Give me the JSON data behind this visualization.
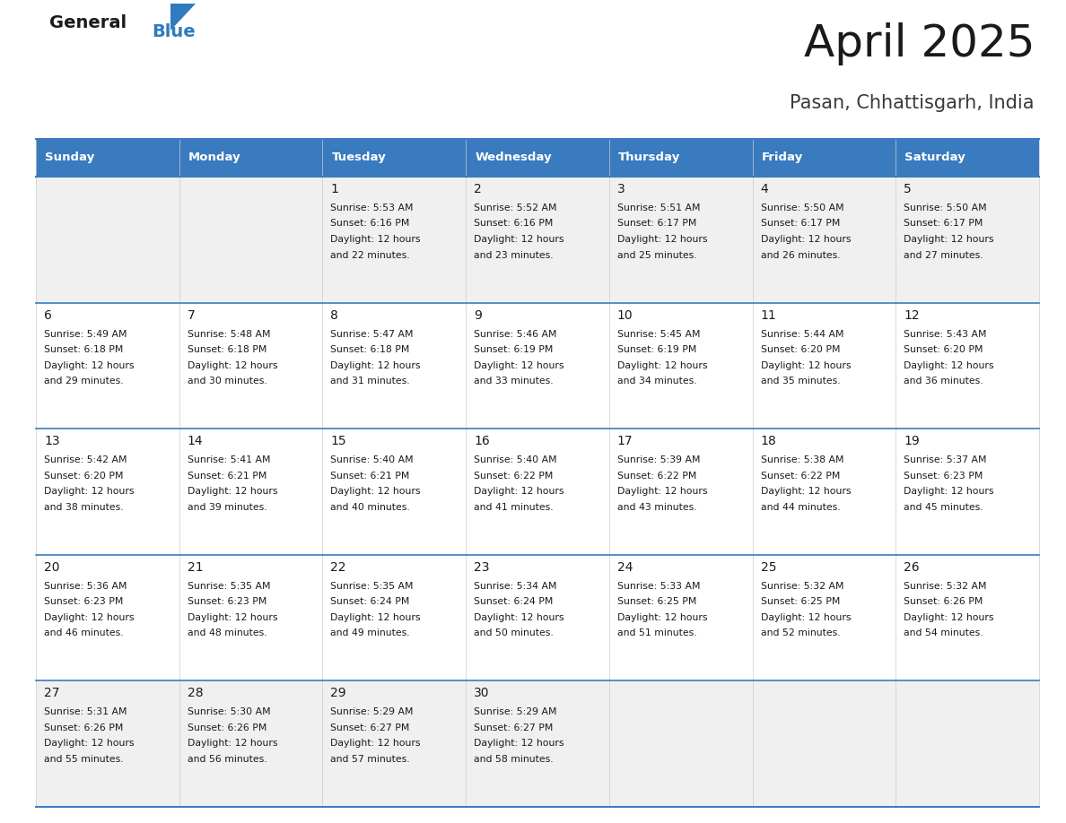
{
  "title": "April 2025",
  "subtitle": "Pasan, Chhattisgarh, India",
  "header_color": "#3a7bbf",
  "header_text_color": "#ffffff",
  "row_divider_color": "#3a7bbf",
  "cell_bg_light": "#f0f0f0",
  "cell_bg_white": "#ffffff",
  "text_color": "#1a1a1a",
  "day_names": [
    "Sunday",
    "Monday",
    "Tuesday",
    "Wednesday",
    "Thursday",
    "Friday",
    "Saturday"
  ],
  "days": [
    {
      "day": 1,
      "col": 2,
      "row": 0,
      "sunrise": "5:53 AM",
      "sunset": "6:16 PM",
      "daylight_hours": 12,
      "daylight_minutes": 22
    },
    {
      "day": 2,
      "col": 3,
      "row": 0,
      "sunrise": "5:52 AM",
      "sunset": "6:16 PM",
      "daylight_hours": 12,
      "daylight_minutes": 23
    },
    {
      "day": 3,
      "col": 4,
      "row": 0,
      "sunrise": "5:51 AM",
      "sunset": "6:17 PM",
      "daylight_hours": 12,
      "daylight_minutes": 25
    },
    {
      "day": 4,
      "col": 5,
      "row": 0,
      "sunrise": "5:50 AM",
      "sunset": "6:17 PM",
      "daylight_hours": 12,
      "daylight_minutes": 26
    },
    {
      "day": 5,
      "col": 6,
      "row": 0,
      "sunrise": "5:50 AM",
      "sunset": "6:17 PM",
      "daylight_hours": 12,
      "daylight_minutes": 27
    },
    {
      "day": 6,
      "col": 0,
      "row": 1,
      "sunrise": "5:49 AM",
      "sunset": "6:18 PM",
      "daylight_hours": 12,
      "daylight_minutes": 29
    },
    {
      "day": 7,
      "col": 1,
      "row": 1,
      "sunrise": "5:48 AM",
      "sunset": "6:18 PM",
      "daylight_hours": 12,
      "daylight_minutes": 30
    },
    {
      "day": 8,
      "col": 2,
      "row": 1,
      "sunrise": "5:47 AM",
      "sunset": "6:18 PM",
      "daylight_hours": 12,
      "daylight_minutes": 31
    },
    {
      "day": 9,
      "col": 3,
      "row": 1,
      "sunrise": "5:46 AM",
      "sunset": "6:19 PM",
      "daylight_hours": 12,
      "daylight_minutes": 33
    },
    {
      "day": 10,
      "col": 4,
      "row": 1,
      "sunrise": "5:45 AM",
      "sunset": "6:19 PM",
      "daylight_hours": 12,
      "daylight_minutes": 34
    },
    {
      "day": 11,
      "col": 5,
      "row": 1,
      "sunrise": "5:44 AM",
      "sunset": "6:20 PM",
      "daylight_hours": 12,
      "daylight_minutes": 35
    },
    {
      "day": 12,
      "col": 6,
      "row": 1,
      "sunrise": "5:43 AM",
      "sunset": "6:20 PM",
      "daylight_hours": 12,
      "daylight_minutes": 36
    },
    {
      "day": 13,
      "col": 0,
      "row": 2,
      "sunrise": "5:42 AM",
      "sunset": "6:20 PM",
      "daylight_hours": 12,
      "daylight_minutes": 38
    },
    {
      "day": 14,
      "col": 1,
      "row": 2,
      "sunrise": "5:41 AM",
      "sunset": "6:21 PM",
      "daylight_hours": 12,
      "daylight_minutes": 39
    },
    {
      "day": 15,
      "col": 2,
      "row": 2,
      "sunrise": "5:40 AM",
      "sunset": "6:21 PM",
      "daylight_hours": 12,
      "daylight_minutes": 40
    },
    {
      "day": 16,
      "col": 3,
      "row": 2,
      "sunrise": "5:40 AM",
      "sunset": "6:22 PM",
      "daylight_hours": 12,
      "daylight_minutes": 41
    },
    {
      "day": 17,
      "col": 4,
      "row": 2,
      "sunrise": "5:39 AM",
      "sunset": "6:22 PM",
      "daylight_hours": 12,
      "daylight_minutes": 43
    },
    {
      "day": 18,
      "col": 5,
      "row": 2,
      "sunrise": "5:38 AM",
      "sunset": "6:22 PM",
      "daylight_hours": 12,
      "daylight_minutes": 44
    },
    {
      "day": 19,
      "col": 6,
      "row": 2,
      "sunrise": "5:37 AM",
      "sunset": "6:23 PM",
      "daylight_hours": 12,
      "daylight_minutes": 45
    },
    {
      "day": 20,
      "col": 0,
      "row": 3,
      "sunrise": "5:36 AM",
      "sunset": "6:23 PM",
      "daylight_hours": 12,
      "daylight_minutes": 46
    },
    {
      "day": 21,
      "col": 1,
      "row": 3,
      "sunrise": "5:35 AM",
      "sunset": "6:23 PM",
      "daylight_hours": 12,
      "daylight_minutes": 48
    },
    {
      "day": 22,
      "col": 2,
      "row": 3,
      "sunrise": "5:35 AM",
      "sunset": "6:24 PM",
      "daylight_hours": 12,
      "daylight_minutes": 49
    },
    {
      "day": 23,
      "col": 3,
      "row": 3,
      "sunrise": "5:34 AM",
      "sunset": "6:24 PM",
      "daylight_hours": 12,
      "daylight_minutes": 50
    },
    {
      "day": 24,
      "col": 4,
      "row": 3,
      "sunrise": "5:33 AM",
      "sunset": "6:25 PM",
      "daylight_hours": 12,
      "daylight_minutes": 51
    },
    {
      "day": 25,
      "col": 5,
      "row": 3,
      "sunrise": "5:32 AM",
      "sunset": "6:25 PM",
      "daylight_hours": 12,
      "daylight_minutes": 52
    },
    {
      "day": 26,
      "col": 6,
      "row": 3,
      "sunrise": "5:32 AM",
      "sunset": "6:26 PM",
      "daylight_hours": 12,
      "daylight_minutes": 54
    },
    {
      "day": 27,
      "col": 0,
      "row": 4,
      "sunrise": "5:31 AM",
      "sunset": "6:26 PM",
      "daylight_hours": 12,
      "daylight_minutes": 55
    },
    {
      "day": 28,
      "col": 1,
      "row": 4,
      "sunrise": "5:30 AM",
      "sunset": "6:26 PM",
      "daylight_hours": 12,
      "daylight_minutes": 56
    },
    {
      "day": 29,
      "col": 2,
      "row": 4,
      "sunrise": "5:29 AM",
      "sunset": "6:27 PM",
      "daylight_hours": 12,
      "daylight_minutes": 57
    },
    {
      "day": 30,
      "col": 3,
      "row": 4,
      "sunrise": "5:29 AM",
      "sunset": "6:27 PM",
      "daylight_hours": 12,
      "daylight_minutes": 58
    }
  ],
  "num_rows": 5,
  "num_cols": 7,
  "fig_width": 11.88,
  "fig_height": 9.18
}
